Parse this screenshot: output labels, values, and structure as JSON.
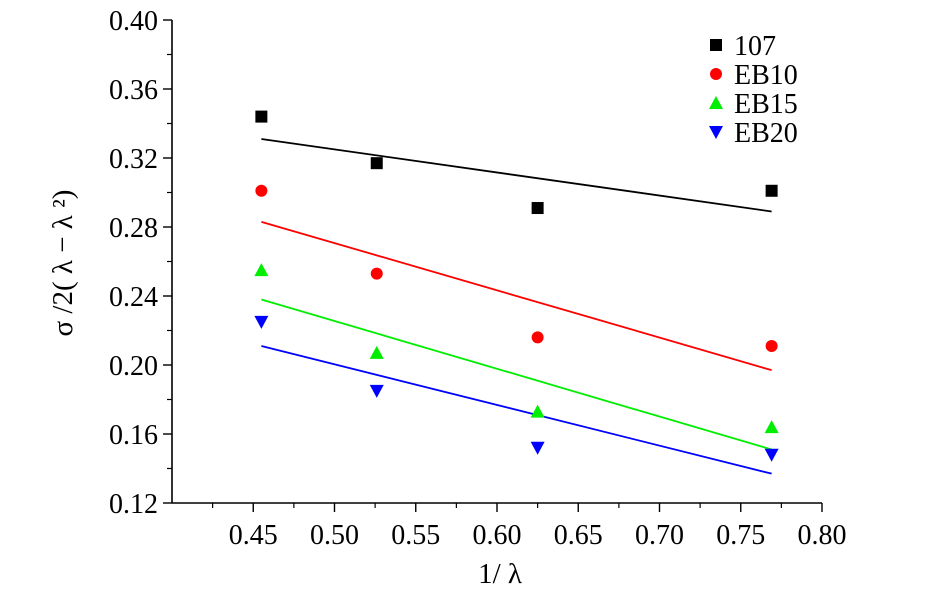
{
  "chart_data": {
    "type": "scatter",
    "xlabel": "1/ λ",
    "ylabel": "σ /2( λ − λ ²)",
    "xlim": [
      0.4,
      0.8
    ],
    "ylim": [
      0.12,
      0.4
    ],
    "xticks": [
      "0.45",
      "0.50",
      "0.55",
      "0.60",
      "0.65",
      "0.70",
      "0.75",
      "0.80"
    ],
    "yticks": [
      "0.12",
      "0.16",
      "0.20",
      "0.24",
      "0.28",
      "0.32",
      "0.36",
      "0.40"
    ],
    "legend_position": "top-right",
    "x": [
      0.455,
      0.526,
      0.625,
      0.769
    ],
    "series": [
      {
        "name": "107",
        "color": "#000000",
        "marker": "square",
        "values": [
          0.344,
          0.317,
          0.291,
          0.301
        ],
        "fit": [
          0.331,
          0.289
        ]
      },
      {
        "name": "EB10",
        "color": "#ff0000",
        "marker": "circle",
        "values": [
          0.301,
          0.253,
          0.216,
          0.211
        ],
        "fit": [
          0.283,
          0.197
        ]
      },
      {
        "name": "EB15",
        "color": "#00ee00",
        "marker": "triangle-up",
        "values": [
          0.255,
          0.207,
          0.173,
          0.164
        ],
        "fit": [
          0.238,
          0.151
        ]
      },
      {
        "name": "EB20",
        "color": "#0000ff",
        "marker": "triangle-down",
        "values": [
          0.225,
          0.185,
          0.152,
          0.148
        ],
        "fit": [
          0.211,
          0.137
        ]
      }
    ]
  }
}
